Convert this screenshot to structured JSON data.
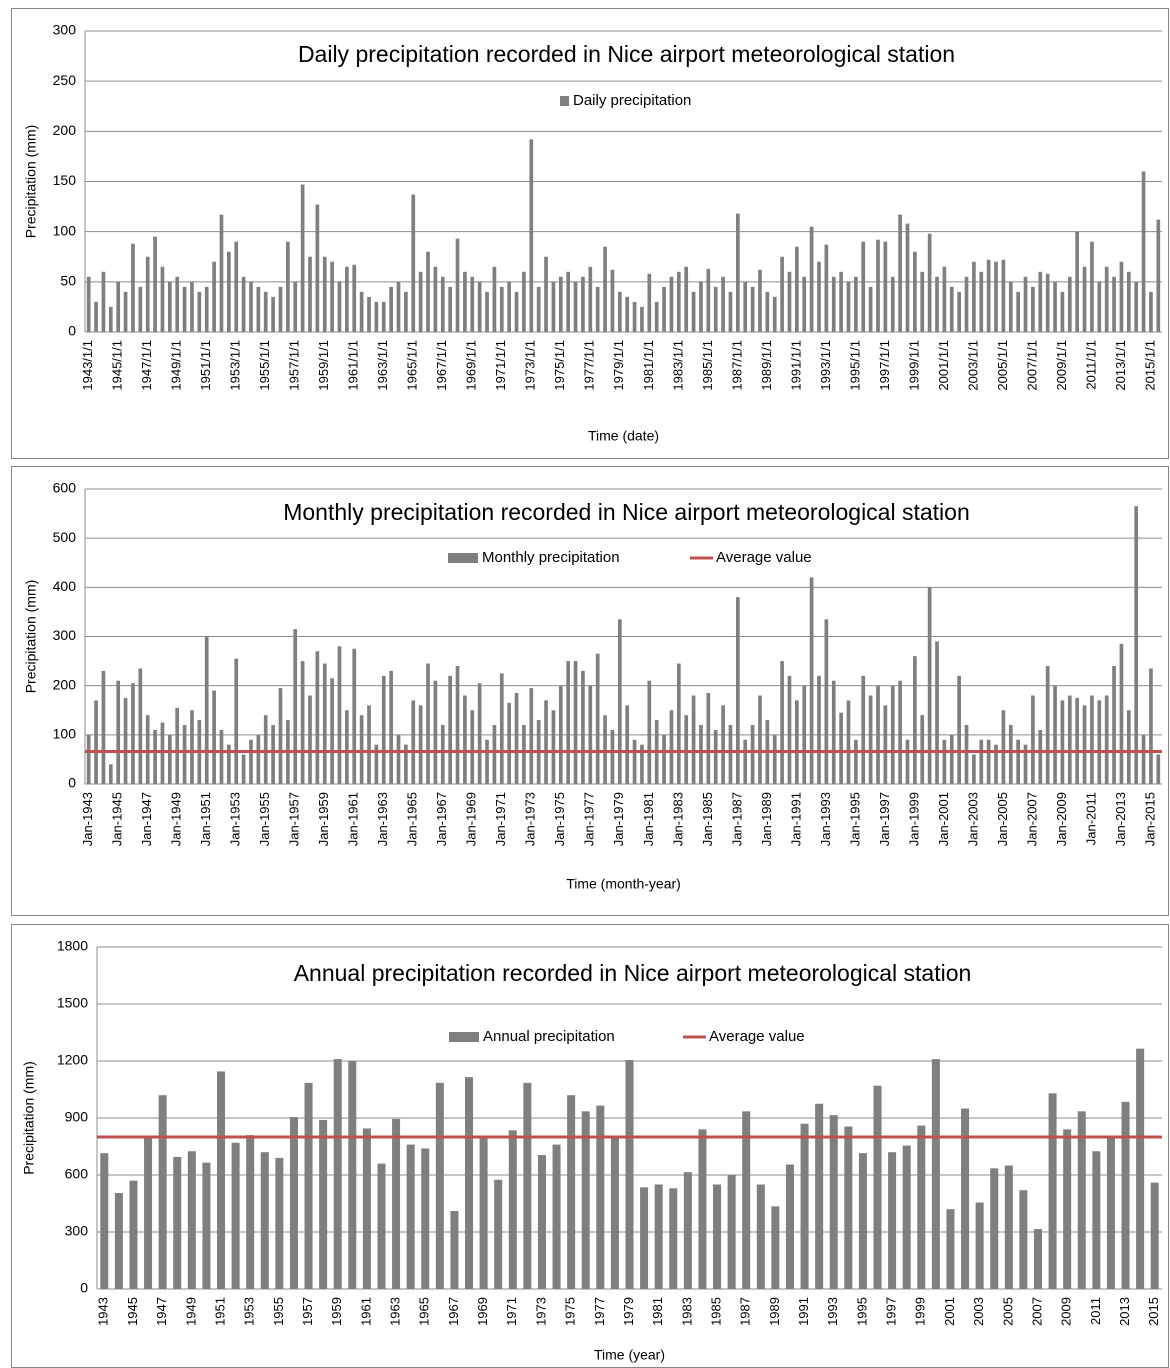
{
  "chart_data": [
    {
      "type": "bar",
      "title": "Daily precipitation recorded in Nice airport meteorological station",
      "x_label": "Time (date)",
      "y_label": "Precipitation (mm)",
      "categories": [
        "1943/1/1",
        null,
        null,
        null,
        "1945/1/1",
        null,
        null,
        null,
        "1947/1/1",
        null,
        null,
        null,
        "1949/1/1",
        null,
        null,
        null,
        "1951/1/1",
        null,
        null,
        null,
        "1953/1/1",
        null,
        null,
        null,
        "1955/1/1",
        null,
        null,
        null,
        "1957/1/1",
        null,
        null,
        null,
        "1959/1/1",
        null,
        null,
        null,
        "1961/1/1",
        null,
        null,
        null,
        "1963/1/1",
        null,
        null,
        null,
        "1965/1/1",
        null,
        null,
        null,
        "1967/1/1",
        null,
        null,
        null,
        "1969/1/1",
        null,
        null,
        null,
        "1971/1/1",
        null,
        null,
        null,
        "1973/1/1",
        null,
        null,
        null,
        "1975/1/1",
        null,
        null,
        null,
        "1977/1/1",
        null,
        null,
        null,
        "1979/1/1",
        null,
        null,
        null,
        "1981/1/1",
        null,
        null,
        null,
        "1983/1/1",
        null,
        null,
        null,
        "1985/1/1",
        null,
        null,
        null,
        "1987/1/1",
        null,
        null,
        null,
        "1989/1/1",
        null,
        null,
        null,
        "1991/1/1",
        null,
        null,
        null,
        "1993/1/1",
        null,
        null,
        null,
        "1995/1/1",
        null,
        null,
        null,
        "1997/1/1",
        null,
        null,
        null,
        "1999/1/1",
        null,
        null,
        null,
        "2001/1/1",
        null,
        null,
        null,
        "2003/1/1",
        null,
        null,
        null,
        "2005/1/1",
        null,
        null,
        null,
        "2007/1/1",
        null,
        null,
        null,
        "2009/1/1",
        null,
        null,
        null,
        "2011/1/1",
        null,
        null,
        null,
        "2013/1/1",
        null,
        null,
        null,
        "2015/1/1",
        null
      ],
      "series": [
        {
          "name": "Daily precipitation",
          "color": "#7f7f7f",
          "values": [
            55,
            30,
            60,
            25,
            50,
            40,
            88,
            45,
            75,
            95,
            65,
            50,
            55,
            45,
            50,
            40,
            45,
            70,
            117,
            80,
            90,
            55,
            50,
            45,
            40,
            35,
            45,
            90,
            50,
            147,
            75,
            127,
            75,
            70,
            50,
            65,
            67,
            40,
            35,
            30,
            30,
            45,
            50,
            40,
            137,
            60,
            80,
            65,
            55,
            45,
            93,
            60,
            55,
            50,
            40,
            65,
            45,
            50,
            40,
            60,
            192,
            45,
            75,
            50,
            55,
            60,
            50,
            55,
            65,
            45,
            85,
            62,
            40,
            35,
            30,
            25,
            58,
            30,
            45,
            55,
            60,
            65,
            40,
            50,
            63,
            45,
            55,
            40,
            118,
            50,
            45,
            62,
            40,
            35,
            75,
            60,
            85,
            55,
            105,
            70,
            87,
            55,
            60,
            50,
            55,
            90,
            45,
            92,
            90,
            55,
            117,
            108,
            80,
            60,
            98,
            55,
            65,
            45,
            40,
            55,
            70,
            60,
            72,
            70,
            72,
            50,
            40,
            55,
            45,
            60,
            58,
            50,
            40,
            55,
            100,
            65,
            90,
            50,
            65,
            55,
            70,
            60,
            50,
            160,
            40,
            112
          ]
        }
      ],
      "ylim": [
        0,
        300
      ],
      "yticks": [
        0,
        50,
        100,
        150,
        200,
        250,
        300
      ],
      "grid": true
    },
    {
      "type": "bar",
      "title": "Monthly precipitation recorded in Nice airport meteorological station",
      "x_label": "Time (month-year)",
      "y_label": "Precipitation (mm)",
      "categories": [
        "Jan-1943",
        null,
        null,
        null,
        "Jan-1945",
        null,
        null,
        null,
        "Jan-1947",
        null,
        null,
        null,
        "Jan-1949",
        null,
        null,
        null,
        "Jan-1951",
        null,
        null,
        null,
        "Jan-1953",
        null,
        null,
        null,
        "Jan-1955",
        null,
        null,
        null,
        "Jan-1957",
        null,
        null,
        null,
        "Jan-1959",
        null,
        null,
        null,
        "Jan-1961",
        null,
        null,
        null,
        "Jan-1963",
        null,
        null,
        null,
        "Jan-1965",
        null,
        null,
        null,
        "Jan-1967",
        null,
        null,
        null,
        "Jan-1969",
        null,
        null,
        null,
        "Jan-1971",
        null,
        null,
        null,
        "Jan-1973",
        null,
        null,
        null,
        "Jan-1975",
        null,
        null,
        null,
        "Jan-1977",
        null,
        null,
        null,
        "Jan-1979",
        null,
        null,
        null,
        "Jan-1981",
        null,
        null,
        null,
        "Jan-1983",
        null,
        null,
        null,
        "Jan-1985",
        null,
        null,
        null,
        "Jan-1987",
        null,
        null,
        null,
        "Jan-1989",
        null,
        null,
        null,
        "Jan-1991",
        null,
        null,
        null,
        "Jan-1993",
        null,
        null,
        null,
        "Jan-1995",
        null,
        null,
        null,
        "Jan-1997",
        null,
        null,
        null,
        "Jan-1999",
        null,
        null,
        null,
        "Jan-2001",
        null,
        null,
        null,
        "Jan-2003",
        null,
        null,
        null,
        "Jan-2005",
        null,
        null,
        null,
        "Jan-2007",
        null,
        null,
        null,
        "Jan-2009",
        null,
        null,
        null,
        "Jan-2011",
        null,
        null,
        null,
        "Jan-2013",
        null,
        null,
        null,
        "Jan-2015",
        null
      ],
      "series": [
        {
          "name": "Monthly precipitation",
          "color": "#7f7f7f",
          "values": [
            100,
            170,
            230,
            40,
            210,
            175,
            205,
            235,
            140,
            110,
            125,
            100,
            155,
            120,
            150,
            130,
            300,
            190,
            110,
            80,
            255,
            60,
            90,
            100,
            140,
            120,
            195,
            130,
            315,
            250,
            180,
            270,
            245,
            215,
            280,
            150,
            275,
            140,
            160,
            80,
            220,
            230,
            100,
            80,
            170,
            160,
            245,
            210,
            120,
            220,
            240,
            180,
            150,
            205,
            90,
            120,
            225,
            165,
            185,
            120,
            195,
            130,
            170,
            150,
            200,
            250,
            250,
            230,
            200,
            265,
            140,
            110,
            335,
            160,
            90,
            80,
            210,
            130,
            100,
            150,
            245,
            140,
            180,
            120,
            185,
            110,
            160,
            120,
            380,
            90,
            120,
            180,
            130,
            100,
            250,
            220,
            170,
            200,
            420,
            220,
            335,
            210,
            145,
            170,
            90,
            220,
            180,
            200,
            160,
            200,
            210,
            90,
            260,
            140,
            400,
            290,
            90,
            100,
            220,
            120,
            60,
            90,
            90,
            80,
            150,
            120,
            90,
            80,
            180,
            110,
            240,
            200,
            170,
            180,
            175,
            160,
            180,
            170,
            180,
            240,
            285,
            150,
            565,
            100,
            235,
            60
          ]
        }
      ],
      "average": {
        "name": "Average value",
        "color": "#c0504d",
        "value": 66
      },
      "ylim": [
        0,
        600
      ],
      "yticks": [
        0,
        100,
        200,
        300,
        400,
        500,
        600
      ],
      "grid": true
    },
    {
      "type": "bar",
      "title": "Annual precipitation recorded in Nice airport meteorological station",
      "x_label": "Time (year)",
      "y_label": "Precipitation (mm)",
      "categories": [
        "1943",
        null,
        "1945",
        null,
        "1947",
        null,
        "1949",
        null,
        "1951",
        null,
        "1953",
        null,
        "1955",
        null,
        "1957",
        null,
        "1959",
        null,
        "1961",
        null,
        "1963",
        null,
        "1965",
        null,
        "1967",
        null,
        "1969",
        null,
        "1971",
        null,
        "1973",
        null,
        "1975",
        null,
        "1977",
        null,
        "1979",
        null,
        "1981",
        null,
        "1983",
        null,
        "1985",
        null,
        "1987",
        null,
        "1989",
        null,
        "1991",
        null,
        "1993",
        null,
        "1995",
        null,
        "1997",
        null,
        "1999",
        null,
        "2001",
        null,
        "2003",
        null,
        "2005",
        null,
        "2007",
        null,
        "2009",
        null,
        "2011",
        null,
        "2013",
        null,
        "2015"
      ],
      "series": [
        {
          "name": "Annual precipitation",
          "color": "#7f7f7f",
          "values": [
            715,
            505,
            570,
            800,
            1020,
            695,
            725,
            665,
            1145,
            770,
            810,
            720,
            690,
            905,
            1085,
            890,
            1210,
            1200,
            845,
            660,
            895,
            760,
            740,
            1085,
            410,
            1115,
            800,
            575,
            835,
            1085,
            705,
            760,
            1020,
            935,
            965,
            800,
            1205,
            535,
            550,
            530,
            615,
            840,
            550,
            600,
            935,
            550,
            435,
            655,
            870,
            975,
            915,
            855,
            715,
            1070,
            720,
            755,
            860,
            1210,
            420,
            950,
            455,
            635,
            650,
            520,
            315,
            1030,
            840,
            935,
            725,
            800,
            985,
            1265,
            560
          ]
        }
      ],
      "average": {
        "name": "Average value",
        "color": "#c0504d",
        "value": 800
      },
      "ylim": [
        0,
        1800
      ],
      "yticks": [
        0,
        300,
        600,
        900,
        1200,
        1500,
        1800
      ],
      "grid": true
    }
  ]
}
